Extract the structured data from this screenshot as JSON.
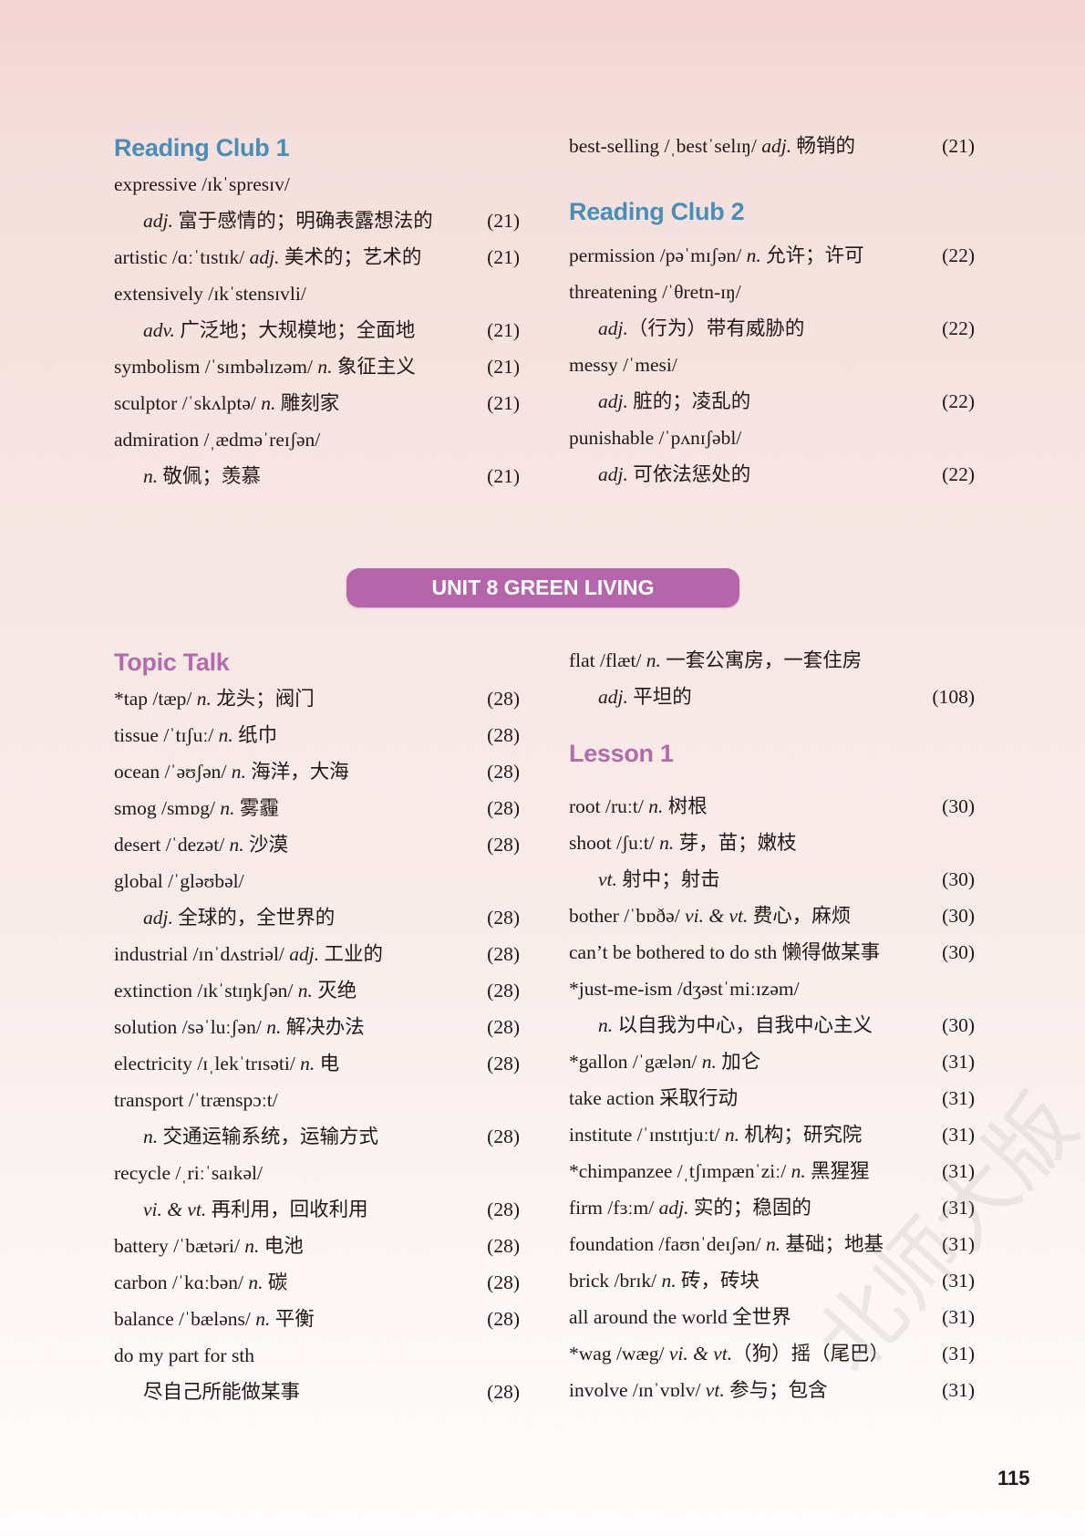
{
  "colors": {
    "heading_blue": "#4a8db7",
    "heading_purple": "#b46ca9",
    "banner": "#b565a9"
  },
  "unit_banner": "UNIT 8 GREEN LIVING",
  "page_number": "115",
  "watermark": "北师大版",
  "sections": {
    "reading_club_1": {
      "heading": "Reading Club 1",
      "color": "blue",
      "rows": [
        {
          "word": "expressive /ɪkˈspresɪv/"
        },
        {
          "sub": true,
          "pos": "adj.",
          "def": " 富于感情的；明确表露想法的",
          "page": "(21)"
        },
        {
          "word": "artistic /ɑːˈtɪstɪk/ ",
          "pos": "adj.",
          "def": " 美术的；艺术的",
          "page": "(21)"
        },
        {
          "word": "extensively /ɪkˈstensɪvli/"
        },
        {
          "sub": true,
          "pos": "adv.",
          "def": " 广泛地；大规模地；全面地",
          "page": "(21)"
        },
        {
          "word": "symbolism /ˈsɪmbəlɪzəm/ ",
          "pos": "n.",
          "def": " 象征主义",
          "page": "(21)"
        },
        {
          "word": "sculptor /ˈskʌlptə/ ",
          "pos": "n.",
          "def": " 雕刻家",
          "page": "(21)"
        },
        {
          "word": "admiration /ˌædməˈreɪʃən/"
        },
        {
          "sub": true,
          "pos": "n.",
          "def": " 敬佩；羡慕",
          "page": "(21)"
        }
      ]
    },
    "reading_club_1_cont": {
      "rows": [
        {
          "word": "best-selling /ˌbestˈselɪŋ/ ",
          "pos": "adj.",
          "def": " 畅销的",
          "page": "(21)"
        }
      ]
    },
    "reading_club_2": {
      "heading": "Reading Club 2",
      "color": "blue",
      "rows": [
        {
          "word": "permission /pəˈmɪʃən/ ",
          "pos": "n.",
          "def": " 允许；许可",
          "page": "(22)"
        },
        {
          "word": "threatening /ˈθretn-ɪŋ/"
        },
        {
          "sub": true,
          "pos": "adj.",
          "def": "（行为）带有威胁的",
          "page": "(22)"
        },
        {
          "word": "messy /ˈmesi/"
        },
        {
          "sub": true,
          "pos": "adj.",
          "def": " 脏的；凌乱的",
          "page": "(22)"
        },
        {
          "word": "punishable /ˈpʌnɪʃəbl/"
        },
        {
          "sub": true,
          "pos": "adj.",
          "def": " 可依法惩处的",
          "page": "(22)"
        }
      ]
    },
    "topic_talk": {
      "heading": "Topic Talk",
      "color": "purple",
      "rows": [
        {
          "word": "*tap /tæp/ ",
          "pos": "n.",
          "def": " 龙头；阀门",
          "page": "(28)"
        },
        {
          "word": "tissue /ˈtɪʃuː/ ",
          "pos": "n.",
          "def": " 纸巾",
          "page": "(28)"
        },
        {
          "word": "ocean /ˈəʊʃən/ ",
          "pos": "n.",
          "def": " 海洋，大海",
          "page": "(28)"
        },
        {
          "word": "smog /smɒg/ ",
          "pos": "n.",
          "def": " 雾霾",
          "page": "(28)"
        },
        {
          "word": "desert /ˈdezət/ ",
          "pos": "n.",
          "def": " 沙漠",
          "page": "(28)"
        },
        {
          "word": "global /ˈgləʊbəl/"
        },
        {
          "sub": true,
          "pos": "adj.",
          "def": " 全球的，全世界的",
          "page": "(28)"
        },
        {
          "word": "industrial /ɪnˈdʌstriəl/ ",
          "pos": "adj.",
          "def": " 工业的",
          "page": "(28)"
        },
        {
          "word": "extinction /ɪkˈstɪŋkʃən/ ",
          "pos": "n.",
          "def": " 灭绝",
          "page": "(28)"
        },
        {
          "word": "solution /səˈluːʃən/ ",
          "pos": "n.",
          "def": " 解决办法",
          "page": "(28)"
        },
        {
          "word": "electricity /ɪˌlekˈtrɪsəti/ ",
          "pos": "n.",
          "def": " 电",
          "page": "(28)"
        },
        {
          "word": "transport /ˈtrænspɔːt/"
        },
        {
          "sub": true,
          "pos": "n.",
          "def": " 交通运输系统，运输方式",
          "page": "(28)"
        },
        {
          "word": "recycle /ˌriːˈsaɪkəl/"
        },
        {
          "sub": true,
          "pos": "vi. & vt.",
          "def": " 再利用，回收利用",
          "page": "(28)"
        },
        {
          "word": "battery /ˈbætəri/ ",
          "pos": "n.",
          "def": " 电池",
          "page": "(28)"
        },
        {
          "word": "carbon /ˈkɑːbən/ ",
          "pos": "n.",
          "def": " 碳",
          "page": "(28)"
        },
        {
          "word": "balance /ˈbæləns/ ",
          "pos": "n.",
          "def": " 平衡",
          "page": "(28)"
        },
        {
          "word": "do my part for sth"
        },
        {
          "sub": true,
          "def": "尽自己所能做某事",
          "page": "(28)"
        }
      ]
    },
    "topic_talk_cont": {
      "rows": [
        {
          "word": "flat /flæt/ ",
          "pos": "n.",
          "def": " 一套公寓房，一套住房"
        },
        {
          "sub": true,
          "pos": "adj.",
          "def": " 平坦的",
          "page": "(108)"
        }
      ]
    },
    "lesson_1": {
      "heading": "Lesson 1",
      "color": "purple",
      "rows": [
        {
          "word": "root /ruːt/ ",
          "pos": "n.",
          "def": " 树根",
          "page": "(30)"
        },
        {
          "word": "shoot /ʃuːt/ ",
          "pos": "n.",
          "def": " 芽，苗；嫩枝"
        },
        {
          "sub": true,
          "pos": "vt.",
          "def": " 射中；射击",
          "page": "(30)"
        },
        {
          "word": "bother /ˈbɒðə/ ",
          "pos": "vi. & vt.",
          "def": " 费心，麻烦",
          "page": "(30)"
        },
        {
          "word": "can’t be bothered to do sth",
          "def": " 懒得做某事",
          "page": "(30)"
        },
        {
          "word": "*just-me-ism /dʒəstˈmiːɪzəm/"
        },
        {
          "sub": true,
          "pos": "n.",
          "def": " 以自我为中心，自我中心主义",
          "page": "(30)"
        },
        {
          "word": "*gallon /ˈgælən/ ",
          "pos": "n.",
          "def": " 加仑",
          "page": "(31)"
        },
        {
          "word": "take action",
          "def": " 采取行动",
          "page": "(31)"
        },
        {
          "word": "institute /ˈɪnstɪtjuːt/ ",
          "pos": "n.",
          "def": " 机构；研究院",
          "page": "(31)"
        },
        {
          "word": "*chimpanzee /ˌtʃɪmpænˈziː/ ",
          "pos": "n.",
          "def": " 黑猩猩",
          "page": "(31)"
        },
        {
          "word": "firm /fɜːm/ ",
          "pos": "adj.",
          "def": " 实的；稳固的",
          "page": "(31)"
        },
        {
          "word": "foundation /faʊnˈdeɪʃən/ ",
          "pos": "n.",
          "def": " 基础；地基",
          "page": "(31)"
        },
        {
          "word": "brick /brɪk/ ",
          "pos": "n.",
          "def": " 砖，砖块",
          "page": "(31)"
        },
        {
          "word": "all around the world",
          "def": " 全世界",
          "page": "(31)"
        },
        {
          "word": "*wag /wæg/ ",
          "pos": "vi. & vt.",
          "def": "（狗）摇（尾巴）",
          "page": "(31)"
        },
        {
          "word": "involve /ɪnˈvɒlv/ ",
          "pos": "vt.",
          "def": " 参与；包含",
          "page": "(31)"
        }
      ]
    }
  }
}
